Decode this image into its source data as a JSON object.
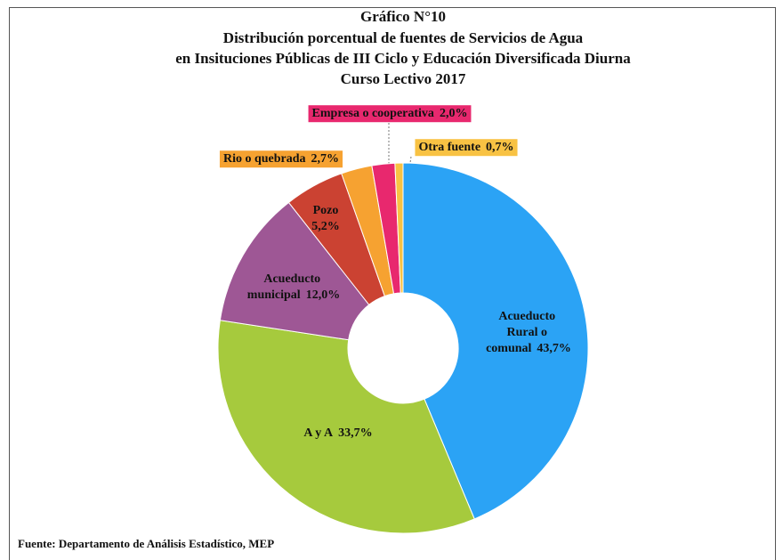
{
  "chart_data": {
    "type": "donut",
    "title": "Gráfico N°10",
    "subtitle": [
      "Distribución porcentual de fuentes de Servicios de Agua",
      "en Insituciones Públicas de III Ciclo y Educación Diversificada Diurna",
      "Curso Lectivo 2017"
    ],
    "categories": [
      "Acueducto Rural o comunal",
      "A y A",
      "Acueducto municipal",
      "Pozo",
      "Rio o quebrada",
      "Empresa o cooperativa",
      "Otra fuente"
    ],
    "values": [
      43.7,
      33.7,
      12.0,
      5.2,
      2.7,
      2.0,
      0.7
    ],
    "value_labels": [
      "43,7%",
      "33,7%",
      "12,0%",
      "5,2%",
      "2,7%",
      "2,0%",
      "0,7%"
    ],
    "colors": [
      "#2ba3f5",
      "#a6ca3d",
      "#9e5795",
      "#cb4232",
      "#f6a231",
      "#e8286e",
      "#f8c243"
    ],
    "source": "Fuente: Departamento de Análisis Estadístico, MEP"
  }
}
